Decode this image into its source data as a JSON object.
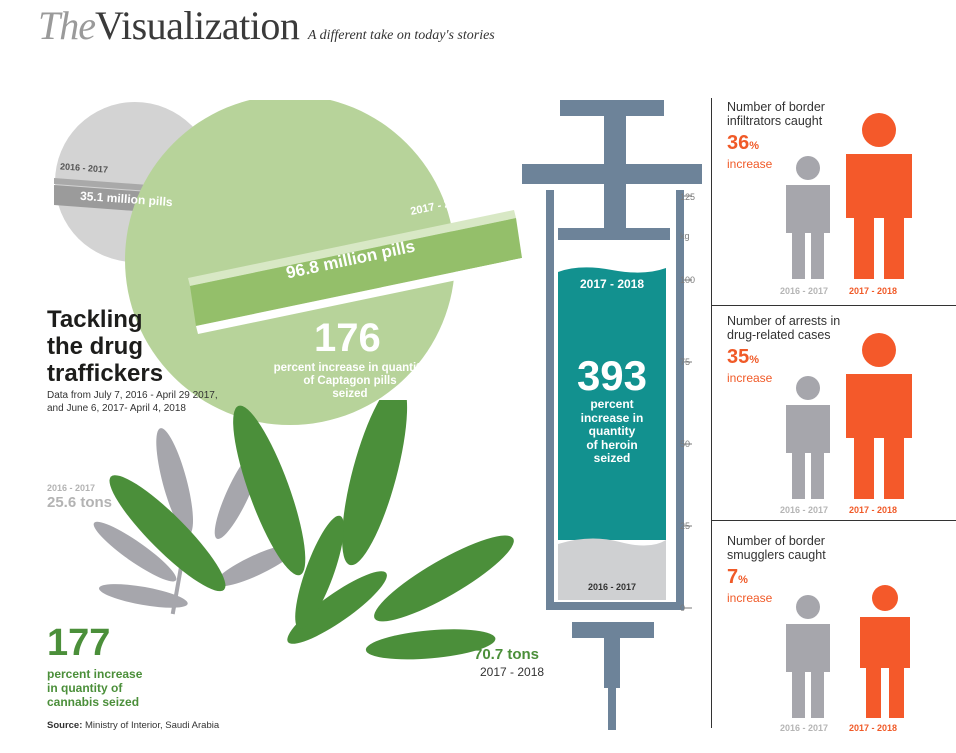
{
  "header": {
    "brand_the": "The",
    "brand_vis": "Visualization",
    "tagline": "A different take on today's stories"
  },
  "main": {
    "title_lines": [
      "Tackling",
      "the drug",
      "traffickers"
    ],
    "note_lines": [
      "Data from July 7, 2016 - April 29 2017,",
      "and June 6, 2017- April 4, 2018"
    ],
    "source_label": "Source:",
    "source_text": "Ministry of Interior, Saudi Arabia"
  },
  "captagon": {
    "prev_period": "2016 - 2017",
    "prev_value": "35.1 million pills",
    "curr_period": "2017 - 2018",
    "curr_value": "96.8 million pills",
    "pct": "176",
    "pct_text": [
      "percent increase in quantity",
      "of Captagon pills",
      "seized"
    ]
  },
  "cannabis": {
    "prev_period": "2016 - 2017",
    "prev_value": "25.6 tons",
    "curr_value": "70.7 tons",
    "curr_period": "2017 - 2018",
    "pct": "177",
    "pct_text": [
      "percent increase",
      "in quantity of",
      "cannabis seized"
    ]
  },
  "heroin": {
    "unit": "kg",
    "ticks": [
      "125",
      "100",
      "75",
      "50",
      "25",
      "0"
    ],
    "curr_period": "2017 - 2018",
    "prev_period": "2016 - 2017",
    "pct": "393",
    "pct_text": [
      "percent",
      "increase in",
      "quantity",
      "of heroin",
      "seized"
    ]
  },
  "panels": [
    {
      "title_lines": [
        "Number of border",
        "infiltrators caught"
      ],
      "pct": "36",
      "pct_sign": "%",
      "inc": "increase",
      "prev": "2016 - 2017",
      "curr": "2017 - 2018",
      "prev_scale": 1.0,
      "curr_scale": 1.36
    },
    {
      "title_lines": [
        "Number of arrests in",
        "drug-related cases"
      ],
      "pct": "35",
      "pct_sign": "%",
      "inc": "increase",
      "prev": "2016 - 2017",
      "curr": "2017 - 2018",
      "prev_scale": 1.0,
      "curr_scale": 1.35
    },
    {
      "title_lines": [
        "Number of border",
        "smugglers caught"
      ],
      "pct": "7",
      "pct_sign": "%",
      "inc": "increase",
      "prev": "2016 - 2017",
      "curr": "2017 - 2018",
      "prev_scale": 1.0,
      "curr_scale": 1.07
    }
  ],
  "colors": {
    "green_light": "#b7d39a",
    "green_dark": "#4b8f3a",
    "grey": "#c9c9c9",
    "teal": "#12918f",
    "syringe": "#6d8399",
    "orange": "#f05a28"
  }
}
